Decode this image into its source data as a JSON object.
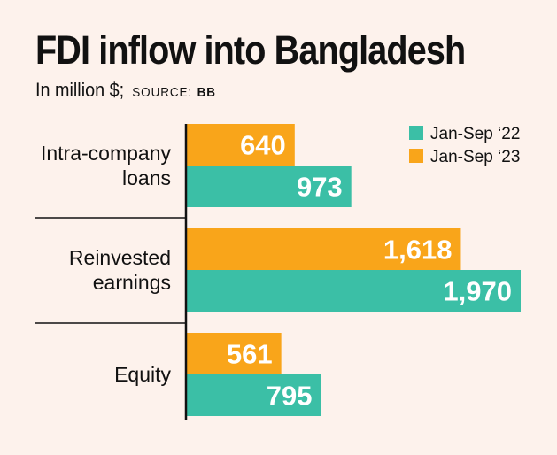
{
  "title": "FDI inflow into Bangladesh",
  "subtitle": "In million $;",
  "source_label": "SOURCE:",
  "source_name": "BB",
  "colors": {
    "series_22": "#3bbfa6",
    "series_23": "#f9a51a",
    "background": "#fdf2ec",
    "axis": "#111111"
  },
  "chart_data": {
    "type": "bar",
    "orientation": "horizontal",
    "categories": [
      [
        "Intra-company",
        "loans"
      ],
      [
        "Reinvested",
        "earnings"
      ],
      [
        "Equity"
      ]
    ],
    "series": [
      {
        "name": "Jan-Sep '23",
        "color": "#f9a51a",
        "values": [
          640,
          1618,
          561
        ],
        "labels": [
          "640",
          "1,618",
          "561"
        ]
      },
      {
        "name": "Jan-Sep '22",
        "color": "#3bbfa6",
        "values": [
          973,
          1970,
          795
        ],
        "labels": [
          "973",
          "1,970",
          "795"
        ]
      }
    ],
    "legend": [
      {
        "name": "Jan-Sep ‘22",
        "color": "#3bbfa6"
      },
      {
        "name": "Jan-Sep ‘23",
        "color": "#f9a51a"
      }
    ],
    "legend_position": "top-right",
    "xlim": [
      0,
      1970
    ],
    "grid": false
  }
}
